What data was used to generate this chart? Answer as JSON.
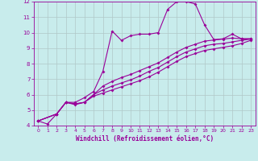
{
  "xlabel": "Windchill (Refroidissement éolien,°C)",
  "background_color": "#c8ecec",
  "line_color": "#990099",
  "xlim": [
    -0.5,
    23.5
  ],
  "ylim": [
    4,
    12
  ],
  "xticks": [
    0,
    1,
    2,
    3,
    4,
    5,
    6,
    7,
    8,
    9,
    10,
    11,
    12,
    13,
    14,
    15,
    16,
    17,
    18,
    19,
    20,
    21,
    22,
    23
  ],
  "yticks": [
    4,
    5,
    6,
    7,
    8,
    9,
    10,
    11,
    12
  ],
  "grid_color": "#b0c8c8",
  "line1_x": [
    0,
    1,
    2,
    3,
    4,
    5,
    6,
    7,
    8,
    9,
    10,
    11,
    12,
    13,
    14,
    15,
    16,
    17,
    18,
    19,
    20,
    21,
    22,
    23
  ],
  "line1_y": [
    4.3,
    4.1,
    4.75,
    5.5,
    5.5,
    5.8,
    6.2,
    7.5,
    10.1,
    9.5,
    9.8,
    9.9,
    9.9,
    10.0,
    11.5,
    12.0,
    12.0,
    11.85,
    10.5,
    9.55,
    9.6,
    9.9,
    9.6,
    9.6
  ],
  "line2_x": [
    0,
    2,
    3,
    4,
    5,
    6,
    7,
    8,
    9,
    10,
    11,
    12,
    13,
    14,
    15,
    16,
    17,
    18,
    19,
    20,
    21,
    22,
    23
  ],
  "line2_y": [
    4.3,
    4.75,
    5.5,
    5.4,
    5.5,
    6.0,
    6.55,
    6.85,
    7.1,
    7.3,
    7.55,
    7.8,
    8.05,
    8.4,
    8.75,
    9.05,
    9.25,
    9.45,
    9.52,
    9.58,
    9.65,
    9.6,
    9.6
  ],
  "line3_x": [
    0,
    2,
    3,
    4,
    5,
    6,
    7,
    8,
    9,
    10,
    11,
    12,
    13,
    14,
    15,
    16,
    17,
    18,
    19,
    20,
    21,
    22,
    23
  ],
  "line3_y": [
    4.3,
    4.75,
    5.5,
    5.4,
    5.5,
    6.0,
    6.3,
    6.55,
    6.75,
    6.95,
    7.2,
    7.5,
    7.75,
    8.1,
    8.45,
    8.75,
    8.95,
    9.15,
    9.25,
    9.3,
    9.4,
    9.5,
    9.58
  ],
  "line4_x": [
    0,
    2,
    3,
    4,
    5,
    6,
    7,
    8,
    9,
    10,
    11,
    12,
    13,
    14,
    15,
    16,
    17,
    18,
    19,
    20,
    21,
    22,
    23
  ],
  "line4_y": [
    4.3,
    4.75,
    5.5,
    5.35,
    5.5,
    5.9,
    6.1,
    6.3,
    6.5,
    6.7,
    6.9,
    7.15,
    7.45,
    7.8,
    8.15,
    8.45,
    8.65,
    8.85,
    8.95,
    9.05,
    9.15,
    9.3,
    9.5
  ]
}
